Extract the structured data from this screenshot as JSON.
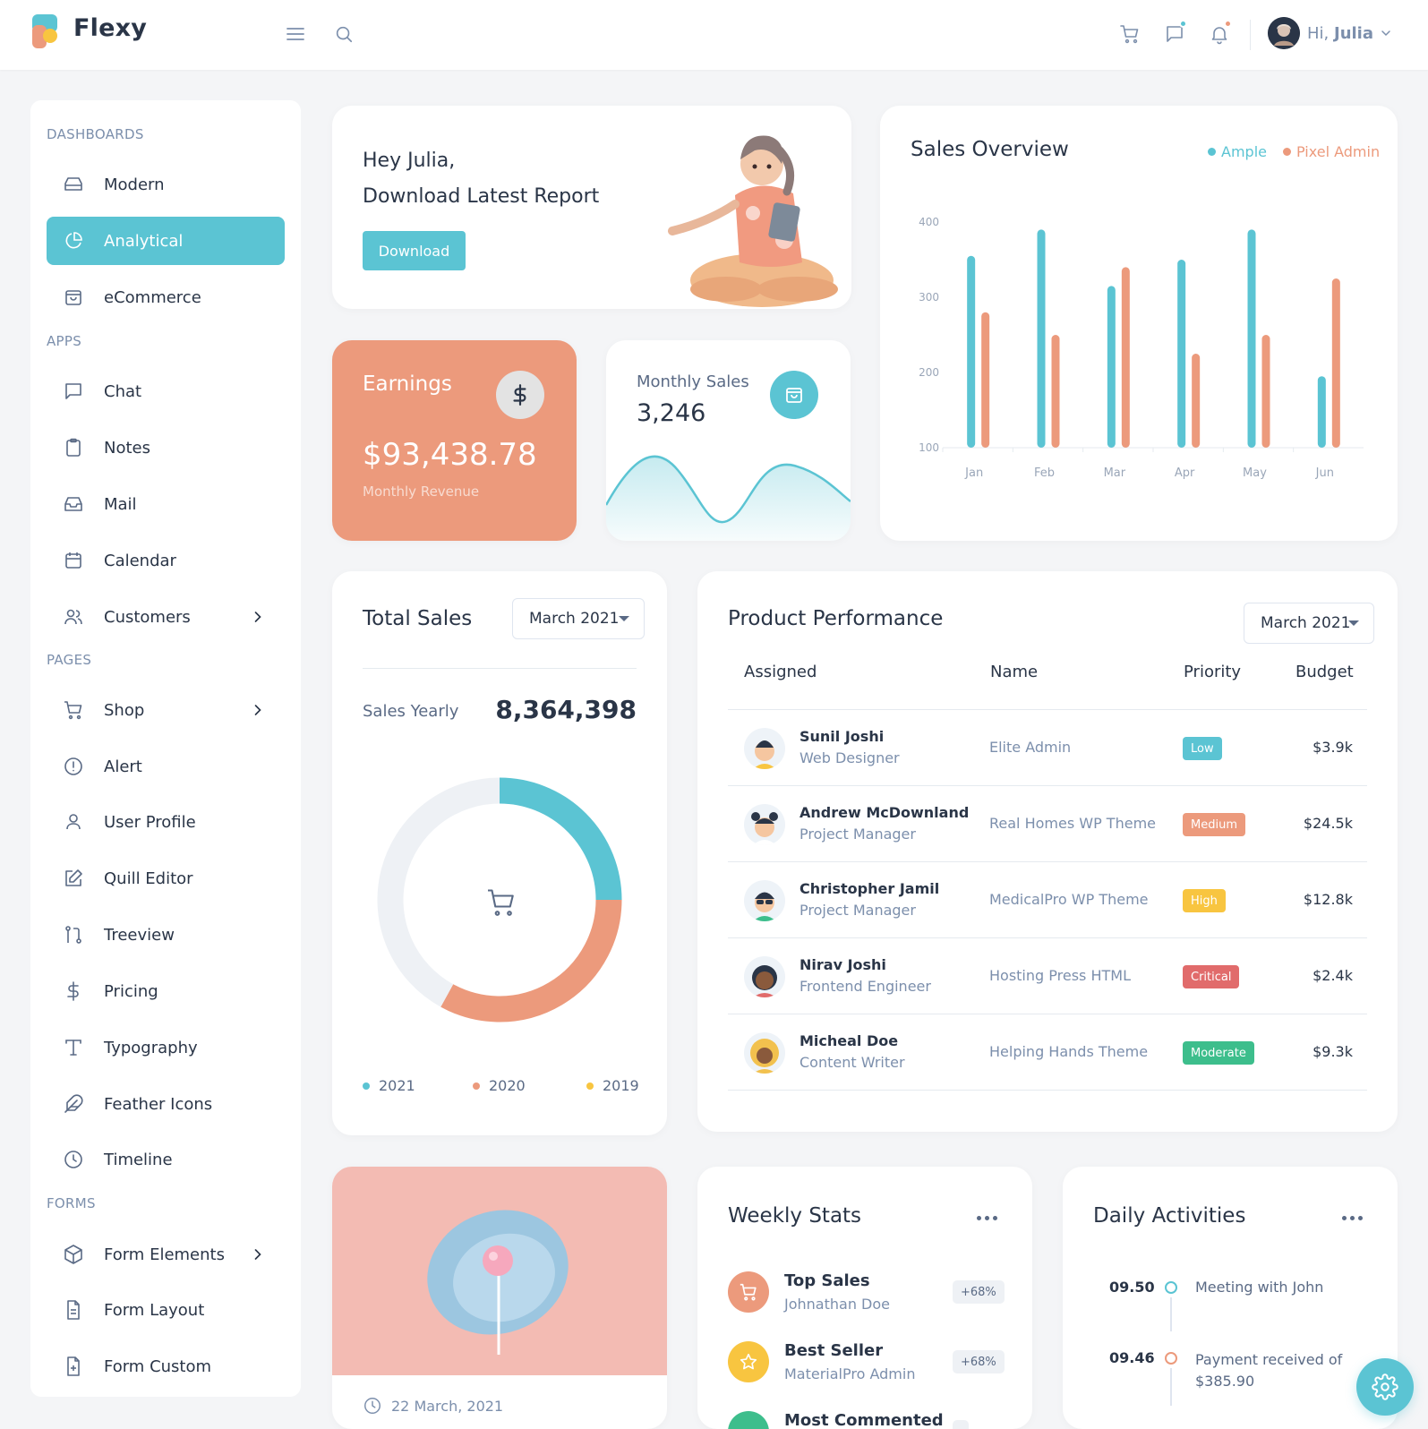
{
  "app": {
    "name": "Flexy"
  },
  "header": {
    "greeting": "Hi,",
    "user_name": "Julia",
    "colors": {
      "accent": "#5bc4d3",
      "orange": "#ec9a7c"
    }
  },
  "sidebar": {
    "sections": [
      {
        "title": "DASHBOARDS"
      },
      {
        "title": "APPS"
      },
      {
        "title": "PAGES"
      },
      {
        "title": "FORMS"
      }
    ],
    "items": [
      {
        "label": "Modern",
        "icon": "dashboard-icon"
      },
      {
        "label": "Analytical",
        "icon": "pie-chart-icon",
        "active": true
      },
      {
        "label": "eCommerce",
        "icon": "shopping-bag-icon"
      },
      {
        "label": "Chat",
        "icon": "chat-icon"
      },
      {
        "label": "Notes",
        "icon": "clipboard-icon"
      },
      {
        "label": "Mail",
        "icon": "inbox-icon"
      },
      {
        "label": "Calendar",
        "icon": "calendar-icon"
      },
      {
        "label": "Customers",
        "icon": "users-icon",
        "has_children": true
      },
      {
        "label": "Shop",
        "icon": "cart-icon",
        "has_children": true
      },
      {
        "label": "Alert",
        "icon": "alert-circle-icon"
      },
      {
        "label": "User Profile",
        "icon": "user-icon"
      },
      {
        "label": "Quill Editor",
        "icon": "edit-icon"
      },
      {
        "label": "Treeview",
        "icon": "git-pull-request-icon"
      },
      {
        "label": "Pricing",
        "icon": "dollar-icon"
      },
      {
        "label": "Typography",
        "icon": "type-icon"
      },
      {
        "label": "Feather Icons",
        "icon": "feather-icon"
      },
      {
        "label": "Timeline",
        "icon": "clock-icon"
      },
      {
        "label": "Form Elements",
        "icon": "box-icon",
        "has_children": true
      },
      {
        "label": "Form Layout",
        "icon": "file-text-icon"
      },
      {
        "label": "Form Custom",
        "icon": "file-plus-icon"
      }
    ]
  },
  "welcome": {
    "line1": "Hey Julia,",
    "line2": "Download Latest Report",
    "button": "Download"
  },
  "earnings": {
    "title": "Earnings",
    "amount": "$93,438.78",
    "caption": "Monthly Revenue"
  },
  "monthly_sales": {
    "title": "Monthly Sales",
    "value": "3,246"
  },
  "sales_overview": {
    "title": "Sales Overview",
    "legend": [
      "Ample",
      "Pixel Admin"
    ]
  },
  "total_sales": {
    "title": "Total Sales",
    "dropdown": "March 2021",
    "label": "Sales Yearly",
    "value": "8,364,398",
    "legend": [
      "2021",
      "2020",
      "2019"
    ]
  },
  "product_performance": {
    "title": "Product Performance",
    "dropdown": "March 2021",
    "columns": [
      "Assigned",
      "Name",
      "Priority",
      "Budget"
    ],
    "rows": [
      {
        "name": "Sunil Joshi",
        "role": "Web Designer",
        "project": "Elite Admin",
        "priority": "Low",
        "priority_color": "#5bc4d3",
        "budget": "$3.9k"
      },
      {
        "name": "Andrew McDownland",
        "role": "Project Manager",
        "project": "Real Homes WP Theme",
        "priority": "Medium",
        "priority_color": "#ec9a7c",
        "budget": "$24.5k"
      },
      {
        "name": "Christopher Jamil",
        "role": "Project Manager",
        "project": "MedicalPro WP Theme",
        "priority": "High",
        "priority_color": "#f8c540",
        "budget": "$12.8k"
      },
      {
        "name": "Nirav Joshi",
        "role": "Frontend Engineer",
        "project": "Hosting Press HTML",
        "priority": "Critical",
        "priority_color": "#e16b6b",
        "budget": "$2.4k"
      },
      {
        "name": "Micheal Doe",
        "role": "Content Writer",
        "project": "Helping Hands Theme",
        "priority": "Moderate",
        "priority_color": "#3dbe8c",
        "budget": "$9.3k"
      }
    ]
  },
  "blog": {
    "date": "22 March, 2021"
  },
  "weekly_stats": {
    "title": "Weekly Stats",
    "items": [
      {
        "title": "Top Sales",
        "subtitle": "Johnathan Doe",
        "badge": "+68%"
      },
      {
        "title": "Best Seller",
        "subtitle": "MaterialPro Admin",
        "badge": "+68%"
      },
      {
        "title": "Most Commented"
      }
    ]
  },
  "daily_activities": {
    "title": "Daily Activities",
    "items": [
      {
        "time": "09.50",
        "text": "Meeting with John"
      },
      {
        "time": "09.46",
        "text": "Payment received of $385.90"
      }
    ]
  },
  "chart_data": [
    {
      "type": "bar",
      "title": "Sales Overview",
      "categories": [
        "Jan",
        "Feb",
        "Mar",
        "Apr",
        "May",
        "Jun"
      ],
      "series": [
        {
          "name": "Ample",
          "color": "#5bc4d3",
          "values": [
            355,
            390,
            315,
            350,
            390,
            195
          ]
        },
        {
          "name": "Pixel Admin",
          "color": "#ec9a7c",
          "values": [
            280,
            250,
            340,
            225,
            250,
            325
          ]
        }
      ],
      "yticks": [
        100,
        200,
        300,
        400
      ],
      "ylim": [
        100,
        400
      ],
      "grid": false,
      "legend": "top-right"
    },
    {
      "type": "pie",
      "title": "Total Sales",
      "categories": [
        "2021",
        "2020",
        "2019"
      ],
      "values": [
        25,
        33,
        42
      ],
      "colors": [
        "#5bc4d3",
        "#ec9a7c",
        "#eef1f5"
      ]
    }
  ]
}
